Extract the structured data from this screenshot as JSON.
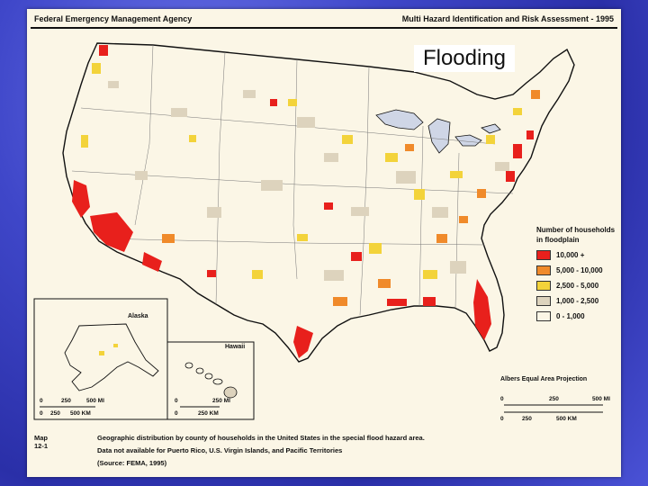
{
  "header": {
    "agency": "Federal Emergency Management Agency",
    "report": "Multi Hazard Identification and Risk Assessment - 1995"
  },
  "overlay_title": "Flooding",
  "legend": {
    "title": "Number of households in floodplain",
    "items": [
      {
        "label": "10,000 +",
        "color": "#e8201c"
      },
      {
        "label": "5,000 - 10,000",
        "color": "#f08a2a"
      },
      {
        "label": "2,500 - 5,000",
        "color": "#f3d33a"
      },
      {
        "label": "1,000 - 2,500",
        "color": "#ddd3bd"
      },
      {
        "label": "0 - 1,000",
        "color": "#fbf6e6"
      }
    ]
  },
  "projection": "Albers Equal Area Projection",
  "main_scale": {
    "miles": [
      "0",
      "250",
      "500 MI"
    ],
    "km": [
      "0",
      "250",
      "500 KM"
    ]
  },
  "insets": {
    "alaska": {
      "label": "Alaska",
      "miles": [
        "0",
        "250",
        "500 MI"
      ],
      "km": [
        "0",
        "250",
        "500 KM"
      ]
    },
    "hawaii": {
      "label": "Hawaii",
      "miles": [
        "0",
        "250 MI"
      ],
      "km": [
        "0",
        "250 KM"
      ]
    }
  },
  "caption": {
    "map_number": "Map 12-1",
    "line1": "Geographic distribution by county of households in the United States in the special flood hazard area.",
    "line2": "Data not available for Puerto Rico, U.S. Virgin Islands, and Pacific Territories",
    "line3": "(Source: FEMA, 1995)"
  },
  "colors": {
    "background": "#3f47c9",
    "paper": "#fbf6e6",
    "outline": "#111111"
  }
}
